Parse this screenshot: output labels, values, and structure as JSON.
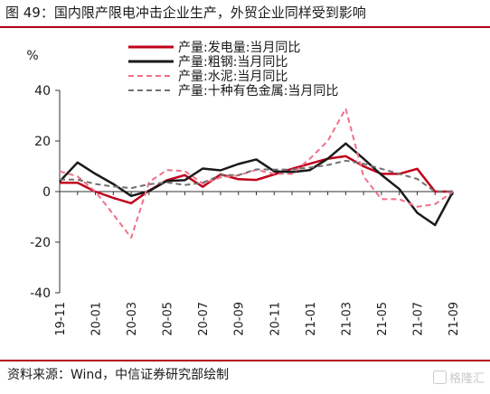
{
  "title": "图 49：国内限产限电冲击企业生产，外贸企业同样受到影响",
  "source": "资料来源：Wind，中信证券研究部绘制",
  "watermark": "格隆汇",
  "chart_data": {
    "type": "line",
    "ylabel": "%",
    "ylim": [
      -40,
      40
    ],
    "yticks": [
      -40,
      -20,
      0,
      20,
      40
    ],
    "x": [
      "19-11",
      "19-12",
      "20-01",
      "20-02",
      "20-03",
      "20-04",
      "20-05",
      "20-06",
      "20-07",
      "20-08",
      "20-09",
      "20-10",
      "20-11",
      "20-12",
      "21-01",
      "21-02",
      "21-03",
      "21-04",
      "21-05",
      "21-06",
      "21-07",
      "21-08",
      "21-09"
    ],
    "xtick_labels": [
      "19-11",
      "20-01",
      "20-03",
      "20-05",
      "20-07",
      "20-09",
      "20-11",
      "21-01",
      "21-03",
      "21-05",
      "21-07",
      "21-09"
    ],
    "legend_position": "top-right",
    "series": [
      {
        "name": "产量:发电量:当月同比",
        "color": "#c0001a",
        "style": "solid",
        "width": 2.5,
        "values": [
          3.5,
          3.5,
          0,
          -2.5,
          -4.6,
          0.4,
          4.5,
          6.5,
          1.9,
          6.8,
          4.9,
          4.6,
          6.8,
          9.0,
          11.0,
          13.0,
          14.0,
          10.0,
          7.0,
          7.0,
          9.0,
          0,
          0
        ]
      },
      {
        "name": "产量:粗钢:当月同比",
        "color": "#1a1a1a",
        "style": "solid",
        "width": 2.5,
        "values": [
          4.0,
          11.5,
          7.0,
          3.0,
          -1.7,
          0.2,
          4.2,
          4.5,
          9.1,
          8.4,
          10.9,
          12.7,
          8.0,
          7.7,
          8.5,
          13.0,
          19.0,
          13.0,
          6.6,
          1.0,
          -8.4,
          -13.2,
          0
        ]
      },
      {
        "name": "产量:水泥:当月同比",
        "color": "#f07088",
        "style": "dashed",
        "width": 2,
        "values": [
          8.0,
          6.0,
          0,
          -9.0,
          -18.3,
          3.8,
          8.5,
          8.1,
          3.2,
          5.6,
          6.4,
          8.6,
          7.0,
          7.0,
          13.0,
          20.0,
          32.8,
          6.0,
          -3.0,
          -3.0,
          -6.0,
          -5.0,
          0
        ]
      },
      {
        "name": "产量:十种有色金属:当月同比",
        "color": "#707070",
        "style": "dashed",
        "width": 2,
        "values": [
          4.7,
          4.7,
          3.0,
          2.0,
          1.4,
          2.9,
          3.6,
          2.6,
          3.5,
          6.5,
          6.5,
          8.8,
          8.7,
          8.7,
          9.5,
          10.5,
          12.2,
          11.0,
          9.0,
          7.0,
          5.0,
          0,
          0
        ]
      }
    ]
  }
}
